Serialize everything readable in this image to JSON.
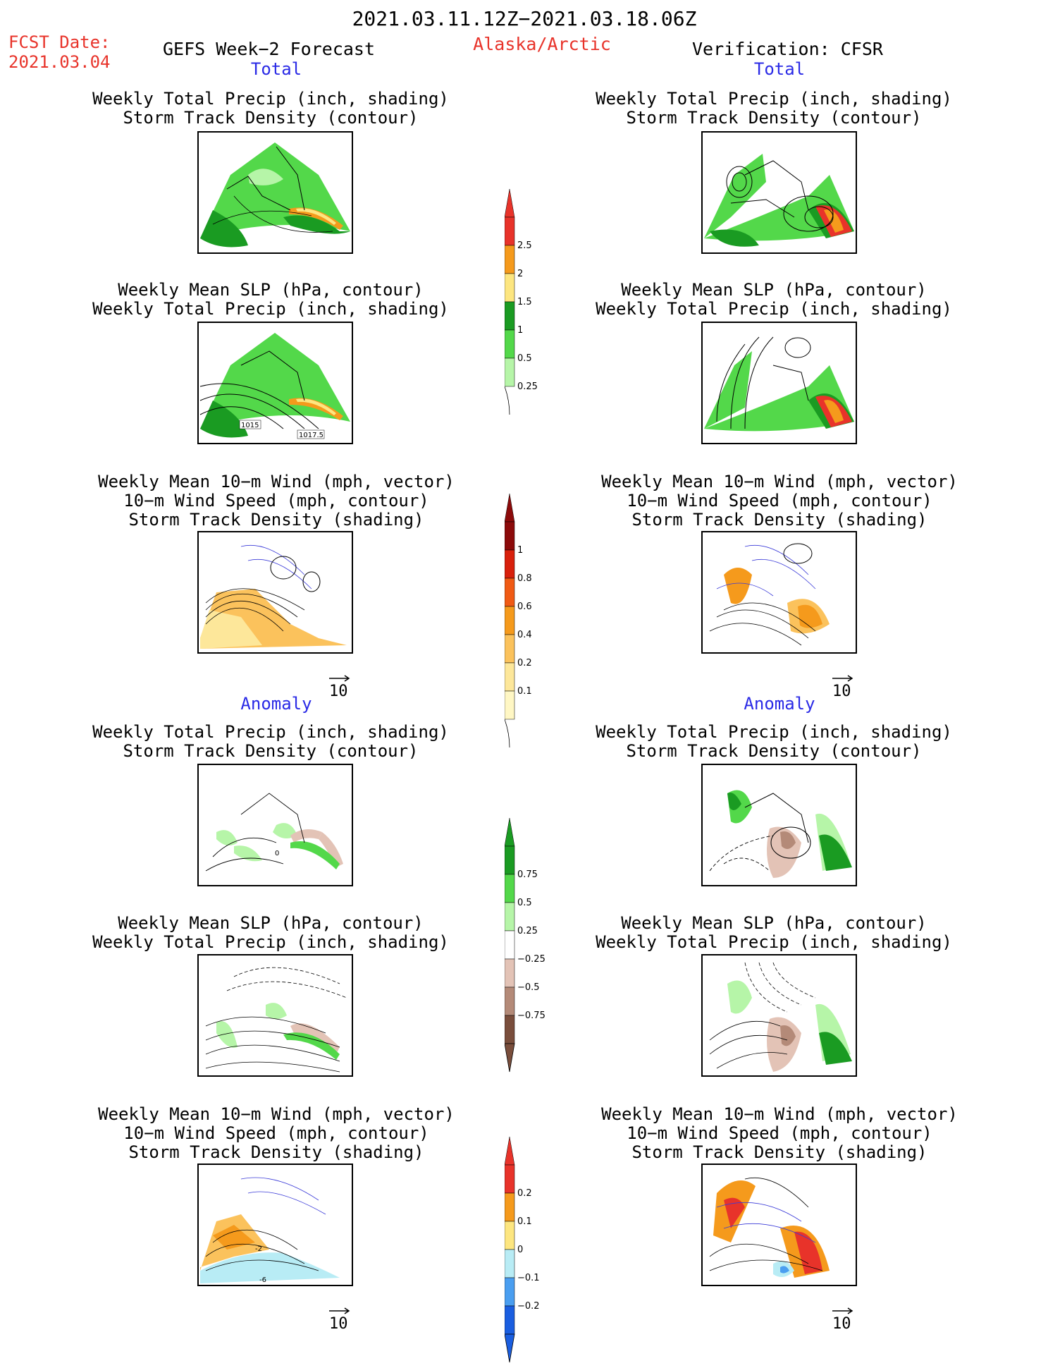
{
  "header": {
    "period": "2021.03.11.12Z−2021.03.18.06Z",
    "fcst_label": "FCST Date:",
    "fcst_date": "2021.03.04",
    "forecast_title": "GEFS Week−2 Forecast",
    "region": "Alaska/Arctic",
    "verification": "Verification: CFSR"
  },
  "sections": {
    "total": "Total",
    "anomaly": "Anomaly"
  },
  "panel_titles": {
    "precip_track": [
      "Weekly Total Precip (inch, shading)",
      "Storm Track Density (contour)"
    ],
    "slp_precip": [
      "Weekly Mean SLP (hPa, contour)",
      "Weekly Total Precip (inch, shading)"
    ],
    "wind_track": [
      "Weekly Mean 10−m Wind (mph, vector)",
      "10−m Wind Speed (mph, contour)",
      "Storm Track Density (shading)"
    ]
  },
  "contour_labels": {
    "slp_total_left": [
      "1015",
      "1017.5"
    ],
    "wind_anom_left": [
      "-2",
      "-6"
    ],
    "precip_anom_left": [
      "0"
    ]
  },
  "vector_reference": "10",
  "colorbars": {
    "precip_total": {
      "labels": [
        "2.5",
        "2",
        "1.5",
        "1",
        "0.5",
        "0.25"
      ],
      "colors": [
        "#e8332a",
        "#f59a1c",
        "#fde680",
        "#1a9b22",
        "#53d84a",
        "#b6f5a8"
      ]
    },
    "track_total": {
      "labels": [
        "1",
        "0.8",
        "0.6",
        "0.4",
        "0.2",
        "0.1"
      ],
      "colors": [
        "#8c0a0a",
        "#d8200c",
        "#f05a14",
        "#f59a1c",
        "#fbc25c",
        "#fde79a",
        "#fff7c4"
      ]
    },
    "precip_anom": {
      "labels": [
        "0.75",
        "0.5",
        "0.25",
        "−0.25",
        "−0.5",
        "−0.75"
      ],
      "colors": [
        "#1a9b22",
        "#53d84a",
        "#b6f5a8",
        "#ffffff",
        "#e3c3b6",
        "#b48a78",
        "#7a4e3c"
      ]
    },
    "track_anom": {
      "labels": [
        "0.2",
        "0.1",
        "0",
        "−0.1",
        "−0.2"
      ],
      "colors": [
        "#e8332a",
        "#f59a1c",
        "#fde680",
        "#b8ecf5",
        "#4a9ef0",
        "#1a5ee0"
      ]
    }
  },
  "colors": {
    "title_red": "#e8332a",
    "section_blue": "#2a2ae6"
  }
}
